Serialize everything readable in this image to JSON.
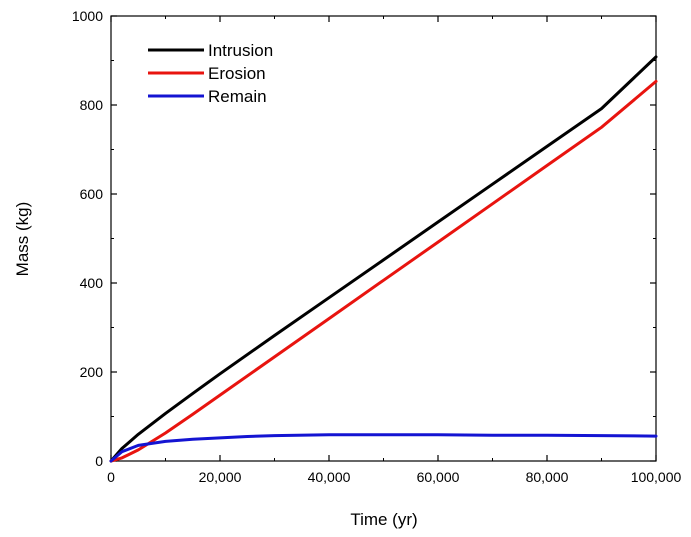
{
  "chart_data": {
    "type": "line",
    "title": "",
    "xlabel": "Time (yr)",
    "ylabel": "Mass (kg)",
    "xlim": [
      0,
      100000
    ],
    "ylim": [
      0,
      1000
    ],
    "x_ticks": [
      0,
      20000,
      40000,
      60000,
      80000,
      100000
    ],
    "x_tick_labels": [
      "0",
      "20,000",
      "40,000",
      "60,000",
      "80,000",
      "100,000"
    ],
    "y_ticks": [
      0,
      200,
      400,
      600,
      800,
      1000
    ],
    "y_tick_labels": [
      "0",
      "200",
      "400",
      "600",
      "800",
      "1000"
    ],
    "grid": false,
    "legend_position": "top-left",
    "series": [
      {
        "name": "Intrusion",
        "color": "#000000",
        "x": [
          0,
          2000,
          5000,
          10000,
          15000,
          20000,
          30000,
          40000,
          50000,
          60000,
          70000,
          80000,
          90000,
          100000
        ],
        "y": [
          0,
          28,
          60,
          107,
          152,
          196,
          282,
          367,
          452,
          537,
          622,
          707,
          792,
          908
        ]
      },
      {
        "name": "Erosion",
        "color": "#e8140f",
        "x": [
          0,
          2000,
          5000,
          10000,
          15000,
          20000,
          30000,
          40000,
          50000,
          60000,
          70000,
          80000,
          90000,
          100000
        ],
        "y": [
          0,
          7,
          25,
          63,
          105,
          148,
          234,
          320,
          406,
          492,
          578,
          664,
          750,
          853
        ]
      },
      {
        "name": "Remain",
        "color": "#1414d2",
        "x": [
          0,
          2000,
          5000,
          10000,
          15000,
          20000,
          25000,
          30000,
          40000,
          50000,
          60000,
          70000,
          80000,
          90000,
          100000
        ],
        "y": [
          0,
          21,
          35,
          44,
          49,
          52,
          55,
          57,
          59,
          59,
          59,
          58,
          58,
          57,
          56
        ]
      }
    ]
  }
}
